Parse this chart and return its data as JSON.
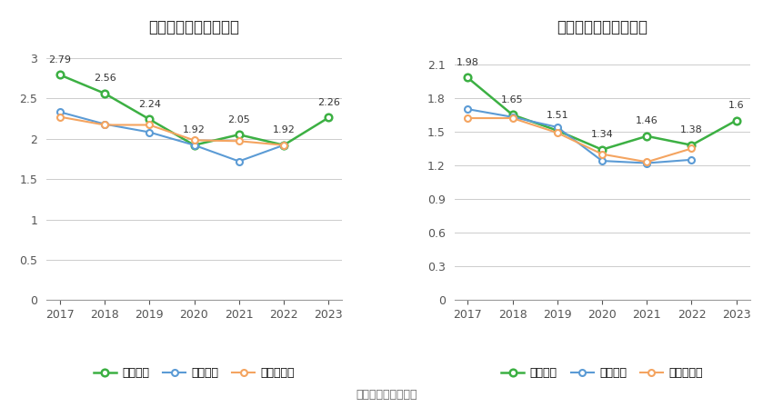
{
  "left_title": "历年流动比率变化情况",
  "right_title": "历年速动比率变化情况",
  "source_text": "数据来源：恒生聚源",
  "years": [
    2017,
    2018,
    2019,
    2020,
    2021,
    2022,
    2023
  ],
  "left": {
    "main": [
      2.79,
      2.56,
      2.24,
      1.92,
      2.05,
      1.92,
      2.26
    ],
    "avg": [
      2.33,
      2.18,
      2.08,
      1.92,
      1.72,
      1.92,
      null
    ],
    "median": [
      2.27,
      2.17,
      2.17,
      1.98,
      1.97,
      1.92,
      null
    ],
    "main_label": "流动比率",
    "avg_label": "行业均值",
    "median_label": "行业中位数",
    "yticks": [
      0,
      0.5,
      1,
      1.5,
      2,
      2.5,
      3
    ],
    "ylim": [
      0,
      3.2
    ]
  },
  "right": {
    "main": [
      1.98,
      1.65,
      1.51,
      1.34,
      1.46,
      1.38,
      1.6
    ],
    "avg": [
      1.7,
      1.63,
      1.54,
      1.24,
      1.22,
      1.25,
      null
    ],
    "median": [
      1.62,
      1.62,
      1.49,
      1.3,
      1.23,
      1.35,
      null
    ],
    "main_label": "速动比率",
    "avg_label": "行业均值",
    "median_label": "行业中位数",
    "yticks": [
      0,
      0.3,
      0.6,
      0.9,
      1.2,
      1.5,
      1.8,
      2.1
    ],
    "ylim": [
      0,
      2.3
    ]
  },
  "color_main": "#3cb043",
  "color_avg": "#5b9bd5",
  "color_median": "#f4a460",
  "background": "#ffffff",
  "title_fontsize": 12,
  "label_fontsize": 9,
  "annotation_fontsize": 8,
  "legend_fontsize": 9,
  "source_fontsize": 9
}
